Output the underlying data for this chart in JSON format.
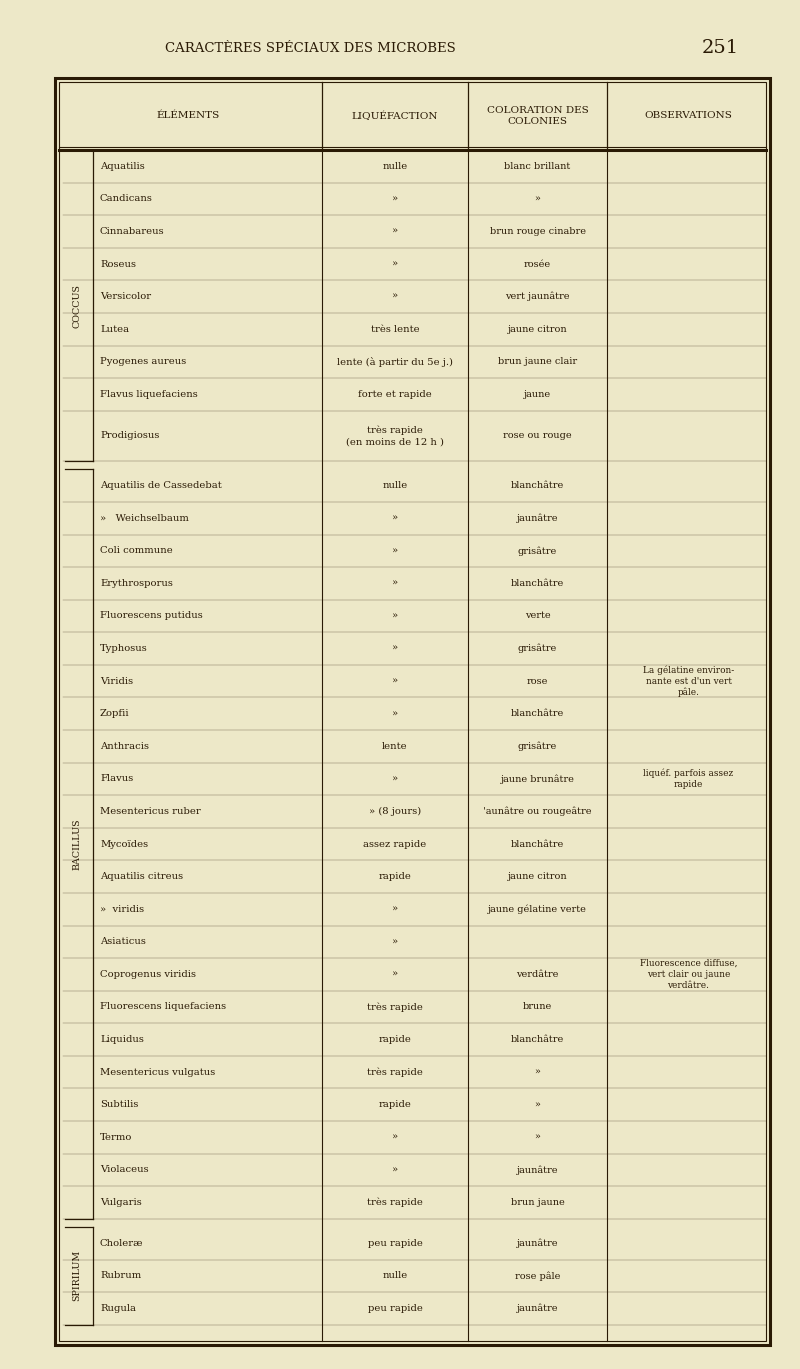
{
  "page_title": "CARACTÈRES SPÉCIAUX DES MICROBES",
  "page_number": "251",
  "bg_color": "#ede8c8",
  "text_color": "#2a1a05",
  "col_headers": [
    "ÉLÉMENTS",
    "LIQUÉFACTION",
    "COLORATION DES\nCOLONIES",
    "OBSERVATIONS"
  ],
  "sections": [
    {
      "label": "COCCUS",
      "rows": [
        {
          "name": "Aquatilis",
          "liq": "nulle",
          "col": "blanc brillant",
          "obs": ""
        },
        {
          "name": "Candicans",
          "liq": "»",
          "col": "»",
          "obs": ""
        },
        {
          "name": "Cinnabareus",
          "liq": "»",
          "col": "brun rouge cinabre",
          "obs": ""
        },
        {
          "name": "Roseus",
          "liq": "»",
          "col": "rosée",
          "obs": ""
        },
        {
          "name": "Versicolor",
          "liq": "»",
          "col": "vert jaunâtre",
          "obs": ""
        },
        {
          "name": "Lutea",
          "liq": "très lente",
          "col": "jaune citron",
          "obs": ""
        },
        {
          "name": "Pyogenes aureus",
          "liq": "lente (à partir du 5e j.)",
          "col": "brun jaune clair",
          "obs": ""
        },
        {
          "name": "Flavus liquefaciens",
          "liq": "forte et rapide",
          "col": "jaune",
          "obs": ""
        },
        {
          "name": "Prodigiosus",
          "liq": "très rapide\n(en moins de 12 h )",
          "col": "rose ou rouge",
          "obs": ""
        }
      ]
    },
    {
      "label": "BACILLUS",
      "rows": [
        {
          "name": "Aquatilis de Cassedebat",
          "liq": "nulle",
          "col": "blanchâtre",
          "obs": ""
        },
        {
          "name": "»   Weichselbaum",
          "liq": "»",
          "col": "jaunâtre",
          "obs": ""
        },
        {
          "name": "Coli commune",
          "liq": "»",
          "col": "grisâtre",
          "obs": ""
        },
        {
          "name": "Erythrosporus",
          "liq": "»",
          "col": "blanchâtre",
          "obs": ""
        },
        {
          "name": "Fluorescens putidus",
          "liq": "»",
          "col": "verte",
          "obs": ""
        },
        {
          "name": "Typhosus",
          "liq": "»",
          "col": "grisâtre",
          "obs": ""
        },
        {
          "name": "Viridis",
          "liq": "»",
          "col": "rose",
          "obs": "La gélatine environ-\nnante est d'un vert\npâle."
        },
        {
          "name": "Zopfii",
          "liq": "»",
          "col": "blanchâtre",
          "obs": ""
        },
        {
          "name": "Anthracis",
          "liq": "lente",
          "col": "grisâtre",
          "obs": ""
        },
        {
          "name": "Flavus",
          "liq": "»",
          "col": "jaune brunâtre",
          "obs": "liquéf. parfois assez\nrapide"
        },
        {
          "name": "Mesentericus ruber",
          "liq": "» (8 jours)",
          "col": "'aunâtre ou rougeâtre",
          "obs": ""
        },
        {
          "name": "Mycoïdes",
          "liq": "assez rapide",
          "col": "blanchâtre",
          "obs": ""
        },
        {
          "name": "Aquatilis citreus",
          "liq": "rapide",
          "col": "jaune citron",
          "obs": ""
        },
        {
          "name": "»  viridis",
          "liq": "»",
          "col": "jaune gélatine verte",
          "obs": ""
        },
        {
          "name": "Asiaticus",
          "liq": "»",
          "col": "",
          "obs": ""
        },
        {
          "name": "Coprogenus viridis",
          "liq": "»",
          "col": "verdâtre",
          "obs": "Fluorescence diffuse,\nvert clair ou jaune\nverdâtre."
        },
        {
          "name": "Fluorescens liquefaciens",
          "liq": "très rapide",
          "col": "brune",
          "obs": ""
        },
        {
          "name": "Liquidus",
          "liq": "rapide",
          "col": "blanchâtre",
          "obs": ""
        },
        {
          "name": "Mesentericus vulgatus",
          "liq": "très rapide",
          "col": "»",
          "obs": ""
        },
        {
          "name": "Subtilis",
          "liq": "rapide",
          "col": "»",
          "obs": ""
        },
        {
          "name": "Termo",
          "liq": "»",
          "col": "»",
          "obs": ""
        },
        {
          "name": "Violaceus",
          "liq": "»",
          "col": "jaunâtre",
          "obs": ""
        },
        {
          "name": "Vulgaris",
          "liq": "très rapide",
          "col": "brun jaune",
          "obs": ""
        }
      ]
    },
    {
      "label": "SPIRILUM",
      "rows": [
        {
          "name": "Choleræ",
          "liq": "peu rapide",
          "col": "jaunâtre",
          "obs": ""
        },
        {
          "name": "Rubrum",
          "liq": "nulle",
          "col": "rose pâle",
          "obs": ""
        },
        {
          "name": "Rugula",
          "liq": "peu rapide",
          "col": "jaunâtre",
          "obs": ""
        }
      ]
    }
  ]
}
